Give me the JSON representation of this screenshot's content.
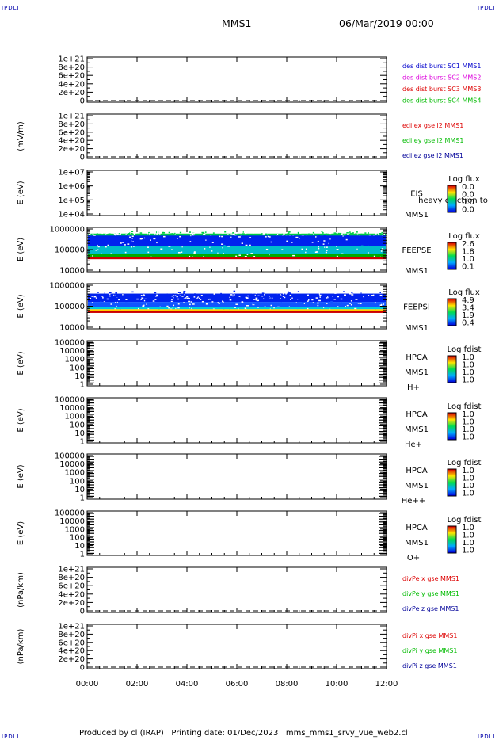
{
  "corners": {
    "tl": "IPDLI",
    "tr": "IPDLI",
    "bl": "IPDLI",
    "br": "IPDLI"
  },
  "header": {
    "spacecraft": "MMS1",
    "datetime": "06/Mar/2019 00:00"
  },
  "footer": {
    "produced": "Produced by cl (IRAP)",
    "printing": "Printing date: 01/Dec/2023",
    "script": "mms_mms1_srvy_vue_web2.cl"
  },
  "time_axis": {
    "ticks": [
      "00:00",
      "02:00",
      "04:00",
      "06:00",
      "08:00",
      "10:00",
      "12:00"
    ]
  },
  "colors": {
    "blue": "#0000cc",
    "magenta": "#dd00dd",
    "red": "#dd0000",
    "green": "#00bb00",
    "navy": "#000099"
  },
  "chart_data": [
    {
      "type": "line",
      "ylabel": "",
      "ticks": [
        "1e+21",
        "8e+20",
        "6e+20",
        "4e+20",
        "2e+20",
        "0"
      ],
      "dashed_zero": true,
      "legend": [
        {
          "text": "des dist burst SC1 MMS1",
          "color": "#0000cc"
        },
        {
          "text": "des dist burst SC2 MMS2",
          "color": "#dd00dd"
        },
        {
          "text": "des dist burst SC3 MMS3",
          "color": "#dd0000"
        },
        {
          "text": "des dist burst SC4 MMS4",
          "color": "#00bb00"
        }
      ]
    },
    {
      "type": "line",
      "ylabel": "(mV/m)",
      "ticks": [
        "1e+21",
        "8e+20",
        "6e+20",
        "4e+20",
        "2e+20",
        "0"
      ],
      "dashed_zero": true,
      "legend": [
        {
          "text": "edi ex gse l2 MMS1",
          "color": "#dd0000"
        },
        {
          "text": "edi ey gse l2 MMS1",
          "color": "#00bb00"
        },
        {
          "text": "edi ez gse l2 MMS1",
          "color": "#000099"
        }
      ]
    },
    {
      "type": "heatmap",
      "ylabel": "E (eV)",
      "ticks": [
        "1e+07",
        "1e+06",
        "1e+05",
        "1e+04"
      ],
      "log": true,
      "labels": [
        "EIS",
        "MMS1"
      ],
      "overlay": "heavy electron to",
      "cbar_title": "Log flux",
      "cbar_values": [
        "0.0",
        "0.0",
        "0.0",
        "0.0"
      ]
    },
    {
      "type": "heatmap",
      "ylabel": "E (eV)",
      "ticks": [
        "1000000",
        "100000",
        "10000"
      ],
      "log": true,
      "labels": [
        "FEEPSE",
        "MMS1"
      ],
      "cbar_title": "Log flux",
      "cbar_values": [
        "2.6",
        "1.8",
        "1.0",
        "0.1"
      ],
      "bands": [
        {
          "from": 600000,
          "to": 450000,
          "color": "#00cc44",
          "noise": 0.6
        },
        {
          "from": 480000,
          "to": 150000,
          "color": "#0022ee",
          "noise": 0.25
        },
        {
          "from": 150000,
          "to": 60000,
          "color": "#00bbcc",
          "noise": 0.3
        },
        {
          "from": 60000,
          "to": 42000,
          "color": "#00aa00",
          "noise": 0.1
        },
        {
          "from": 42000,
          "to": 34000,
          "color": "#cc0000",
          "noise": 0
        }
      ]
    },
    {
      "type": "heatmap",
      "ylabel": "E (eV)",
      "ticks": [
        "1000000",
        "100000",
        "10000"
      ],
      "log": true,
      "labels": [
        "FEEPSI",
        "MMS1"
      ],
      "cbar_title": "Log flux",
      "cbar_values": [
        "4.9",
        "3.4",
        "1.9",
        "0.4"
      ],
      "bands": [
        {
          "from": 400000,
          "to": 160000,
          "color": "#0022ee",
          "noise": 0.8
        },
        {
          "from": 160000,
          "to": 90000,
          "color": "#1155ff",
          "noise": 0.3
        },
        {
          "from": 90000,
          "to": 72000,
          "color": "#00ccdd",
          "noise": 0.1
        },
        {
          "from": 72000,
          "to": 62000,
          "color": "#ffcc00",
          "noise": 0
        },
        {
          "from": 62000,
          "to": 48000,
          "color": "#cc0000",
          "noise": 0
        }
      ]
    },
    {
      "type": "heatmap",
      "ylabel": "E (eV)",
      "ticks": [
        "100000",
        "10000",
        "1000",
        "100",
        "10",
        "1"
      ],
      "log": true,
      "mirror": true,
      "labels": [
        "HPCA",
        "MMS1",
        "H+"
      ],
      "cbar_title": "Log fdist",
      "cbar_values": [
        "1.0",
        "1.0",
        "1.0",
        "1.0"
      ]
    },
    {
      "type": "heatmap",
      "ylabel": "E (eV)",
      "ticks": [
        "100000",
        "10000",
        "1000",
        "100",
        "10",
        "1"
      ],
      "log": true,
      "mirror": true,
      "labels": [
        "HPCA",
        "MMS1",
        "He+"
      ],
      "cbar_title": "Log fdist",
      "cbar_values": [
        "1.0",
        "1.0",
        "1.0",
        "1.0"
      ]
    },
    {
      "type": "heatmap",
      "ylabel": "E (eV)",
      "ticks": [
        "100000",
        "10000",
        "1000",
        "100",
        "10",
        "1"
      ],
      "log": true,
      "mirror": true,
      "labels": [
        "HPCA",
        "MMS1",
        "He++"
      ],
      "cbar_title": "Log fdist",
      "cbar_values": [
        "1.0",
        "1.0",
        "1.0",
        "1.0"
      ]
    },
    {
      "type": "heatmap",
      "ylabel": "E (eV)",
      "ticks": [
        "100000",
        "10000",
        "1000",
        "100",
        "10",
        "1"
      ],
      "log": true,
      "mirror": true,
      "labels": [
        "HPCA",
        "MMS1",
        "O+"
      ],
      "cbar_title": "Log fdist",
      "cbar_values": [
        "1.0",
        "1.0",
        "1.0",
        "1.0"
      ]
    },
    {
      "type": "line",
      "ylabel": "(nPa/km)",
      "ticks": [
        "1e+21",
        "8e+20",
        "6e+20",
        "4e+20",
        "2e+20",
        "0"
      ],
      "dashed_zero": true,
      "legend": [
        {
          "text": "divPe x gse MMS1",
          "color": "#dd0000"
        },
        {
          "text": "divPe y gse MMS1",
          "color": "#00bb00"
        },
        {
          "text": "divPe z gse MMS1",
          "color": "#000099"
        }
      ]
    },
    {
      "type": "line",
      "ylabel": "(nPa/km)",
      "ticks": [
        "1e+21",
        "8e+20",
        "6e+20",
        "4e+20",
        "2e+20",
        "0"
      ],
      "dashed_zero": true,
      "legend": [
        {
          "text": "divPi x gse MMS1",
          "color": "#dd0000"
        },
        {
          "text": "divPi y gse MMS1",
          "color": "#00bb00"
        },
        {
          "text": "divPi z gse MMS1",
          "color": "#000099"
        }
      ]
    }
  ]
}
